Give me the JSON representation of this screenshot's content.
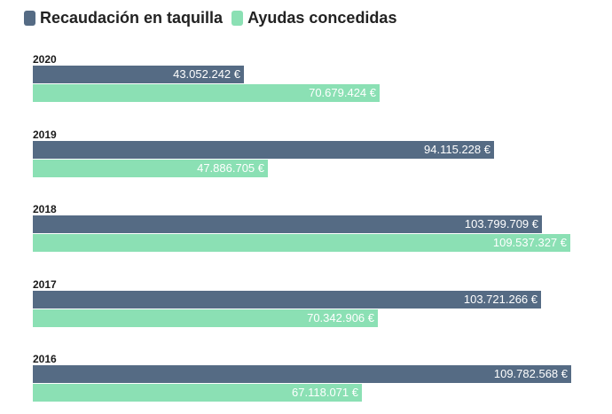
{
  "chart_data": {
    "type": "bar",
    "orientation": "horizontal",
    "categories": [
      "2020",
      "2019",
      "2018",
      "2017",
      "2016"
    ],
    "series": [
      {
        "name": "Recaudación en taquilla",
        "color": "#556b84",
        "values": [
          43052242,
          94115228,
          103799709,
          103721266,
          109782568
        ],
        "labels": [
          "43.052.242 €",
          "94.115.228 €",
          "103.799.709 €",
          "103.721.266 €",
          "109.782.568 €"
        ]
      },
      {
        "name": "Ayudas concedidas",
        "color": "#8be0b4",
        "values": [
          70679424,
          47886705,
          109537327,
          70342906,
          67118071
        ],
        "labels": [
          "70.679.424 €",
          "47.886.705 €",
          "109.537.327 €",
          "70.342.906 €",
          "67.118.071 €"
        ]
      }
    ],
    "xlim": [
      0,
      109782568
    ],
    "legend": "top-left"
  }
}
